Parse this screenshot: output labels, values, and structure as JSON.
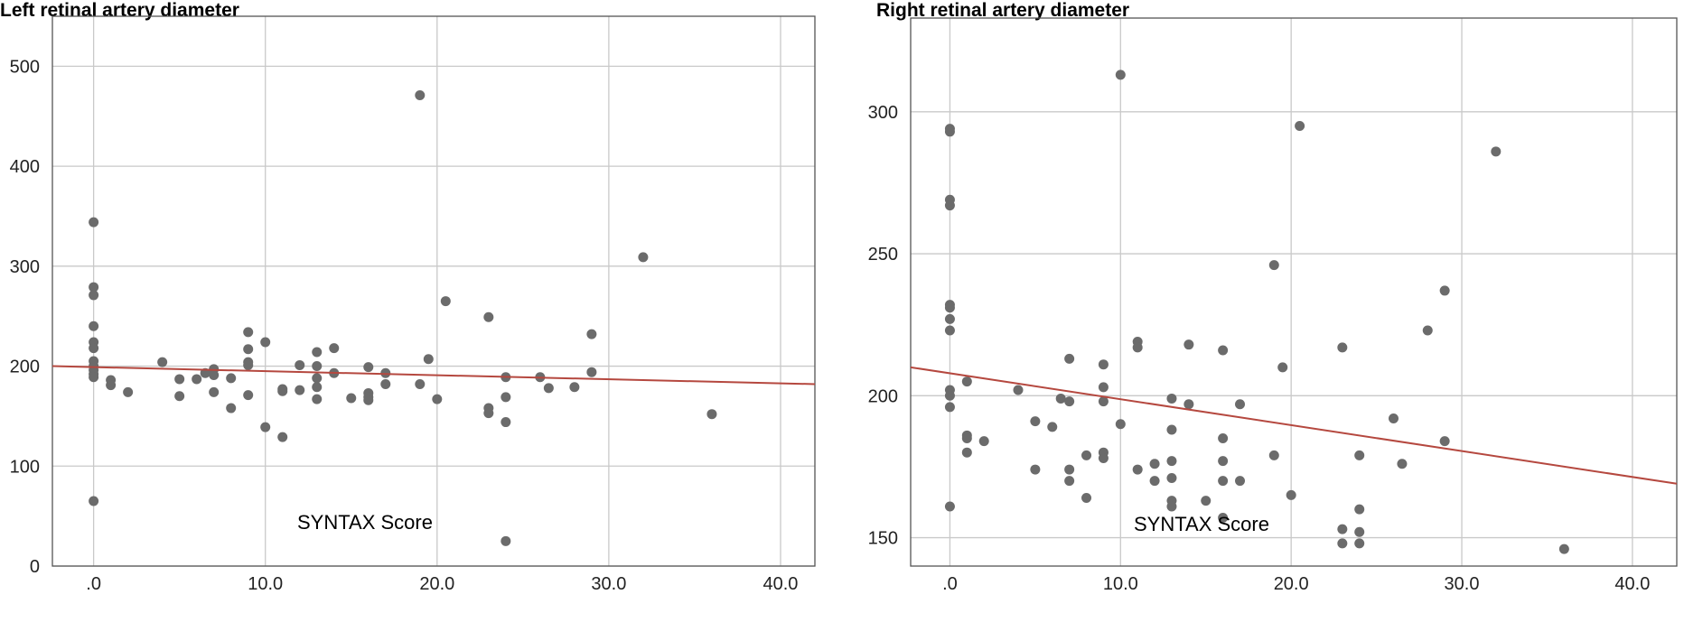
{
  "chart_data": [
    {
      "type": "scatter",
      "title": "Left retinal artery diameter",
      "xlabel": "SYNTAX Score",
      "ylabel": "",
      "xlim": [
        -2.4,
        42
      ],
      "ylim": [
        0,
        550
      ],
      "xticks": [
        0,
        10,
        20,
        30,
        40
      ],
      "xtick_labels": [
        ".0",
        "10.0",
        "20.0",
        "30.0",
        "40.0"
      ],
      "yticks": [
        0,
        100,
        200,
        300,
        400,
        500
      ],
      "ytick_labels": [
        "0",
        "100",
        "200",
        "300",
        "400",
        "500"
      ],
      "grid": true,
      "point_color": "#6b6b6b",
      "fit_line_color": "#b5483f",
      "fit_line": {
        "x": [
          -2.4,
          42
        ],
        "y": [
          200,
          182
        ]
      },
      "points": [
        [
          0,
          344
        ],
        [
          0,
          279
        ],
        [
          0,
          271
        ],
        [
          0,
          240
        ],
        [
          0,
          224
        ],
        [
          0,
          218
        ],
        [
          0,
          205
        ],
        [
          0,
          200
        ],
        [
          0,
          196
        ],
        [
          0,
          192
        ],
        [
          0,
          189
        ],
        [
          0,
          65
        ],
        [
          1,
          186
        ],
        [
          1,
          181
        ],
        [
          2,
          174
        ],
        [
          4,
          204
        ],
        [
          5,
          187
        ],
        [
          5,
          170
        ],
        [
          6,
          187
        ],
        [
          6.5,
          193
        ],
        [
          7,
          197
        ],
        [
          7,
          191
        ],
        [
          7,
          174
        ],
        [
          8,
          188
        ],
        [
          8,
          158
        ],
        [
          9,
          234
        ],
        [
          9,
          217
        ],
        [
          9,
          204
        ],
        [
          9,
          201
        ],
        [
          9,
          171
        ],
        [
          10,
          224
        ],
        [
          10,
          139
        ],
        [
          11,
          177
        ],
        [
          11,
          175
        ],
        [
          11,
          129
        ],
        [
          12,
          201
        ],
        [
          12,
          176
        ],
        [
          13,
          214
        ],
        [
          13,
          200
        ],
        [
          13,
          188
        ],
        [
          13,
          179
        ],
        [
          13,
          167
        ],
        [
          14,
          218
        ],
        [
          14,
          193
        ],
        [
          15,
          168
        ],
        [
          16,
          199
        ],
        [
          16,
          173
        ],
        [
          16,
          169
        ],
        [
          16,
          166
        ],
        [
          17,
          193
        ],
        [
          17,
          182
        ],
        [
          19,
          471
        ],
        [
          19,
          182
        ],
        [
          19.5,
          207
        ],
        [
          20,
          167
        ],
        [
          20.5,
          265
        ],
        [
          23,
          249
        ],
        [
          23,
          158
        ],
        [
          23,
          153
        ],
        [
          24,
          189
        ],
        [
          24,
          169
        ],
        [
          24,
          144
        ],
        [
          24,
          25
        ],
        [
          26,
          189
        ],
        [
          26.5,
          178
        ],
        [
          28,
          179
        ],
        [
          29,
          232
        ],
        [
          29,
          194
        ],
        [
          32,
          309
        ],
        [
          36,
          152
        ]
      ]
    },
    {
      "type": "scatter",
      "title": "Right retinal artery diameter",
      "xlabel": "SYNTAX Score",
      "ylabel": "",
      "xlim": [
        -2.3,
        42.6
      ],
      "ylim": [
        140,
        333
      ],
      "xticks": [
        0,
        10,
        20,
        30,
        40
      ],
      "xtick_labels": [
        ".0",
        "10.0",
        "20.0",
        "30.0",
        "40.0"
      ],
      "yticks": [
        150,
        200,
        250,
        300
      ],
      "ytick_labels": [
        "150",
        "200",
        "250",
        "300"
      ],
      "grid": true,
      "point_color": "#6b6b6b",
      "fit_line_color": "#b5483f",
      "fit_line": {
        "x": [
          -2.3,
          42.6
        ],
        "y": [
          210,
          169
        ]
      },
      "points": [
        [
          0,
          294
        ],
        [
          0,
          293
        ],
        [
          0,
          269
        ],
        [
          0,
          267
        ],
        [
          0,
          232
        ],
        [
          0,
          231
        ],
        [
          0,
          227
        ],
        [
          0,
          223
        ],
        [
          0,
          202
        ],
        [
          0,
          200
        ],
        [
          0,
          196
        ],
        [
          0,
          161
        ],
        [
          1,
          205
        ],
        [
          1,
          186
        ],
        [
          1,
          185
        ],
        [
          1,
          180
        ],
        [
          2,
          184
        ],
        [
          4,
          202
        ],
        [
          5,
          191
        ],
        [
          5,
          174
        ],
        [
          6,
          189
        ],
        [
          6.5,
          199
        ],
        [
          7,
          213
        ],
        [
          7,
          198
        ],
        [
          7,
          174
        ],
        [
          7,
          170
        ],
        [
          8,
          179
        ],
        [
          8,
          164
        ],
        [
          9,
          211
        ],
        [
          9,
          203
        ],
        [
          9,
          198
        ],
        [
          9,
          180
        ],
        [
          9,
          178
        ],
        [
          10,
          313
        ],
        [
          10,
          190
        ],
        [
          11,
          219
        ],
        [
          11,
          217
        ],
        [
          11,
          174
        ],
        [
          12,
          176
        ],
        [
          12,
          170
        ],
        [
          13,
          199
        ],
        [
          13,
          188
        ],
        [
          13,
          177
        ],
        [
          13,
          171
        ],
        [
          13,
          163
        ],
        [
          13,
          161
        ],
        [
          14,
          218
        ],
        [
          14,
          197
        ],
        [
          15,
          163
        ],
        [
          16,
          216
        ],
        [
          16,
          185
        ],
        [
          16,
          177
        ],
        [
          16,
          170
        ],
        [
          16,
          157
        ],
        [
          17,
          197
        ],
        [
          17,
          170
        ],
        [
          19,
          246
        ],
        [
          19,
          179
        ],
        [
          19.5,
          210
        ],
        [
          20,
          165
        ],
        [
          20.5,
          295
        ],
        [
          23,
          217
        ],
        [
          23,
          153
        ],
        [
          23,
          148
        ],
        [
          24,
          179
        ],
        [
          24,
          160
        ],
        [
          24,
          152
        ],
        [
          24,
          148
        ],
        [
          26,
          192
        ],
        [
          26.5,
          176
        ],
        [
          28,
          223
        ],
        [
          29,
          237
        ],
        [
          29,
          184
        ],
        [
          32,
          286
        ],
        [
          36,
          146
        ]
      ]
    }
  ]
}
